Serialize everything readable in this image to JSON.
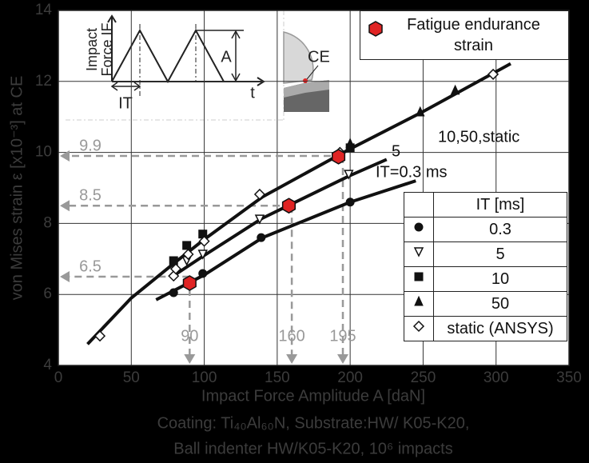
{
  "chart_data": {
    "type": "scatter",
    "xlabel": "Impact Force Amplitude A [daN]",
    "ylabel": "von Mises strain ε [x10⁻³] at CE",
    "caption": [
      "Coating: Ti₄₀Al₆₀N, Substrate:HW/ K05-K20,",
      "Ball indenter HW/K05-K20, 10⁶ impacts"
    ],
    "xlim": [
      0,
      350
    ],
    "xticks": [
      0,
      50,
      100,
      150,
      200,
      250,
      300,
      350
    ],
    "ylim": [
      4,
      14
    ],
    "yticks": [
      4,
      6,
      8,
      10,
      12,
      14
    ],
    "grid": true,
    "legend_title": "IT [ms]",
    "series": [
      {
        "name": "0.3",
        "marker": "circle",
        "color": "#111111",
        "x": [
          79,
          99,
          139,
          200
        ],
        "y": [
          6.05,
          6.59,
          7.6,
          8.6
        ]
      },
      {
        "name": "5",
        "marker": "triangle-down-open",
        "color": "#111111",
        "x": [
          88,
          99,
          138,
          199
        ],
        "y": [
          6.95,
          7.13,
          8.12,
          9.38
        ]
      },
      {
        "name": "10",
        "marker": "square",
        "color": "#111111",
        "x": [
          79,
          88,
          99,
          200
        ],
        "y": [
          6.95,
          7.38,
          7.7,
          10.13
        ]
      },
      {
        "name": "50",
        "marker": "triangle-up",
        "color": "#111111",
        "x": [
          200,
          248,
          272
        ],
        "y": [
          10.25,
          11.14,
          11.75
        ]
      },
      {
        "name": "static (ANSYS)",
        "marker": "diamond-open",
        "color": "#111111",
        "x": [
          28.5,
          79,
          80.5,
          89,
          100,
          138,
          193,
          298
        ],
        "y": [
          4.83,
          6.52,
          6.72,
          7.13,
          7.5,
          8.82,
          10.0,
          12.2
        ]
      }
    ],
    "endurance": {
      "name": "Fatigue endurance strain",
      "color": "#e02424",
      "x": [
        90,
        158,
        192
      ],
      "y": [
        6.32,
        8.5,
        9.88
      ]
    },
    "fits": [
      {
        "label": "10,50,static",
        "x": [
          20,
          50,
          80,
          100,
          140,
          200,
          250,
          310
        ],
        "y": [
          4.6,
          5.9,
          6.9,
          7.55,
          8.75,
          10.1,
          11.15,
          12.5
        ]
      },
      {
        "label": "5",
        "x": [
          78,
          100,
          140,
          200,
          225
        ],
        "y": [
          6.5,
          7.1,
          8.15,
          9.35,
          9.8
        ]
      },
      {
        "label": "IT=0.3 ms",
        "x": [
          67,
          100,
          140,
          200,
          245
        ],
        "y": [
          5.85,
          6.55,
          7.6,
          8.6,
          9.2
        ]
      }
    ],
    "guides": [
      {
        "x": 90,
        "y": 6.5
      },
      {
        "x": 160,
        "y": 8.5
      },
      {
        "x": 195,
        "y": 9.9
      }
    ],
    "inset": {
      "ylabel": [
        "Impact",
        "Force IF"
      ],
      "it": "IT",
      "a": "A",
      "t": "t",
      "ce": "CE"
    }
  }
}
